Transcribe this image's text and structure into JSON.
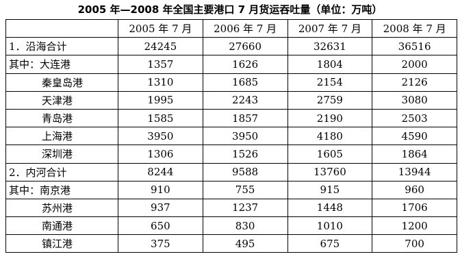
{
  "title": "2005 年—2008 年全国主要港口 7 月货运吞吐量（单位：万吨）",
  "table": {
    "header": [
      "2005 年 7 月",
      "2006 年 7 月",
      "2007 年 7 月",
      "2008 年 7 月"
    ],
    "rows": [
      [
        "1．沿海合计",
        24245,
        27660,
        32631,
        36516
      ],
      [
        "其中：大连港",
        1357,
        1626,
        1804,
        2000
      ],
      [
        "秦皇岛港",
        1310,
        1685,
        2154,
        2126
      ],
      [
        "天津港",
        1995,
        2243,
        2759,
        3080
      ],
      [
        "青岛港",
        1585,
        1857,
        2190,
        2503
      ],
      [
        "上海港",
        3950,
        3950,
        4180,
        4590
      ],
      [
        "深圳港",
        1306,
        1526,
        1605,
        1864
      ],
      [
        "2．内河合计",
        8244,
        9588,
        13760,
        13944
      ],
      [
        "其中：南京港",
        910,
        755,
        915,
        960
      ],
      [
        "苏州港",
        937,
        1237,
        1448,
        1706
      ],
      [
        "南通港",
        650,
        830,
        1010,
        1200
      ],
      [
        "镇江港",
        375,
        495,
        675,
        700
      ]
    ]
  }
}
